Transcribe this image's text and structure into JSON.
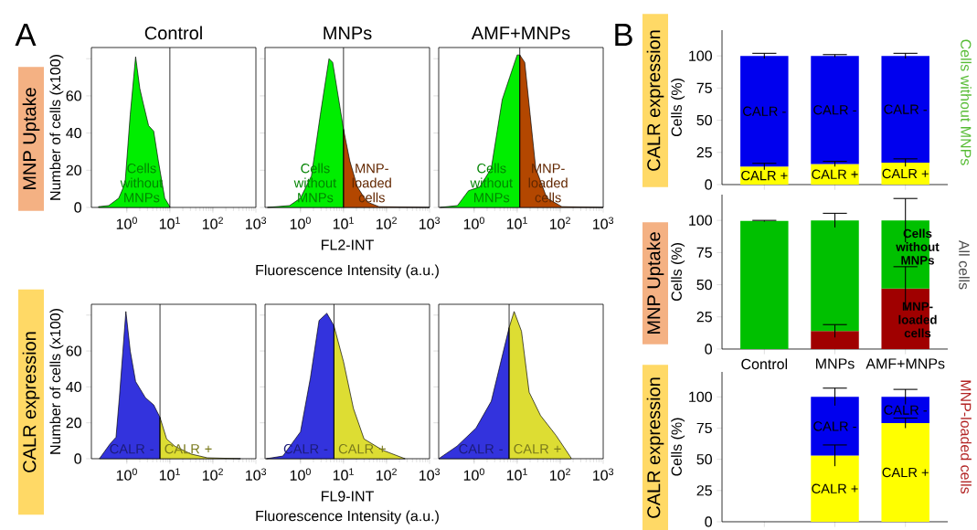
{
  "chart_data": [
    {
      "type": "area",
      "title": "Control",
      "ylabel": "Number of cells (x100)",
      "log": "x",
      "xlim": [
        0.15,
        1000
      ],
      "ylim": [
        0,
        86
      ],
      "xticks": [
        {
          "value": 1,
          "label": "10$^{0}$"
        },
        {
          "value": 10,
          "label": "10$^{1}$"
        },
        {
          "value": 100,
          "label": "10$^{2}$"
        },
        {
          "value": 1000,
          "label": "10$^{3}$"
        }
      ],
      "yticks": [
        0,
        20,
        40,
        60,
        {
          "value": 80,
          "label": null
        }
      ],
      "series": [
        {
          "name": "Cells without MNPs",
          "color": "#00ee00",
          "x": [
            0.22,
            0.38,
            0.65,
            0.91,
            1.2,
            1.6,
            2.0,
            2.4,
            3.2,
            4.2,
            5.4,
            7.6,
            10
          ],
          "values": [
            0.4,
            1,
            5,
            13,
            50,
            81,
            64,
            56,
            44,
            41,
            25,
            5,
            0.4
          ]
        }
      ],
      "ref_lines": [
        {
          "axis": "x",
          "value": 10
        }
      ],
      "annotations": [
        "A",
        "MNP Uptake"
      ]
    },
    {
      "type": "area",
      "title": "MNPs",
      "xlabel": "FL2-INT",
      "log": "x",
      "xlim": [
        0.15,
        1000
      ],
      "ylim": [
        0,
        86
      ],
      "tick_labels": "x",
      "xticks": [
        {
          "value": 1,
          "label": "10$^{0}$"
        },
        {
          "value": 10,
          "label": "10$^{1}$"
        },
        {
          "value": 100,
          "label": "10$^{2}$"
        },
        {
          "value": 1000,
          "label": "10$^{3}$"
        }
      ],
      "yticks": [
        0,
        20,
        40,
        60,
        80
      ],
      "series": [
        {
          "name": "Cells without MNPs",
          "color": "#00ee00",
          "x": [
            0.17,
            0.56,
            1.0,
            1.8,
            2.9,
            4.6,
            5.6,
            7.5,
            10
          ],
          "values": [
            0,
            1,
            5,
            17,
            50,
            80,
            78,
            60,
            42
          ]
        },
        {
          "name": "MNP-loaded cells",
          "color": "#b34700",
          "x": [
            10,
            14,
            21,
            35,
            67,
            1000
          ],
          "values": [
            42,
            25,
            11,
            3,
            0.4,
            0
          ]
        }
      ],
      "ref_lines": [
        {
          "axis": "x",
          "value": 10
        }
      ],
      "annotations": [
        "Fluorescence Intensity (a.u.)"
      ]
    },
    {
      "type": "area",
      "title": "AMF+MNPs",
      "log": "x",
      "xlim": [
        0.15,
        1000
      ],
      "ylim": [
        0,
        86
      ],
      "tick_labels": "x",
      "xticks": [
        {
          "value": 1,
          "label": "10$^{0}$"
        },
        {
          "value": 10,
          "label": "10$^{1}$"
        },
        {
          "value": 100,
          "label": "10$^{2}$"
        },
        {
          "value": 1000,
          "label": "10$^{3}$"
        }
      ],
      "yticks": [
        0,
        20,
        40,
        60,
        80
      ],
      "series": [
        {
          "name": "Cells without MNPs",
          "color": "#00ee00",
          "x": [
            0.16,
            0.41,
            0.74,
            1.35,
            2.5,
            4.5,
            6.7,
            10,
            11.5
          ],
          "values": [
            0,
            1,
            9,
            11,
            21,
            58,
            70,
            82,
            82
          ]
        },
        {
          "name": "MNP-loaded cells",
          "color": "#b34700",
          "x": [
            11.5,
            15,
            20,
            27,
            49,
            110,
            1000
          ],
          "values": [
            82,
            78,
            50,
            21,
            5,
            0.4,
            0
          ]
        }
      ],
      "ref_lines": [
        {
          "axis": "x",
          "value": 11.5
        }
      ]
    },
    {
      "type": "area",
      "ylabel": "Number of cells (x100)",
      "log": "x",
      "xlim": [
        0.15,
        1000
      ],
      "ylim": [
        0,
        86
      ],
      "xticks": [
        {
          "value": 1,
          "label": "10$^{0}$"
        },
        {
          "value": 10,
          "label": "10$^{1}$"
        },
        {
          "value": 100,
          "label": "10$^{2}$"
        },
        {
          "value": 1000,
          "label": "10$^{3}$"
        }
      ],
      "yticks": [
        0,
        20,
        40,
        60,
        {
          "value": 80,
          "label": null
        }
      ],
      "series": [
        {
          "name": "CALR -",
          "color": "#3333dd",
          "x": [
            0.23,
            0.4,
            0.56,
            0.67,
            0.95,
            1.2,
            1.6,
            2.7,
            4.2,
            5.9
          ],
          "values": [
            0,
            8,
            12,
            34,
            82,
            60,
            43,
            34,
            30,
            23
          ]
        },
        {
          "name": "CALR +",
          "color": "#dddd33",
          "x": [
            5.9,
            8.4,
            13,
            31,
            74,
            440
          ],
          "values": [
            23,
            11,
            7,
            2.6,
            0.5,
            0
          ]
        }
      ],
      "ref_lines": [
        {
          "axis": "x",
          "value": 5.9
        }
      ],
      "annotations": [
        "CALR expression"
      ]
    },
    {
      "type": "area",
      "xlabel": "FL9-INT",
      "log": "x",
      "xlim": [
        0.15,
        1000
      ],
      "ylim": [
        0,
        86
      ],
      "tick_labels": "x",
      "xticks": [
        {
          "value": 1,
          "label": "10$^{0}$"
        },
        {
          "value": 10,
          "label": "10$^{1}$"
        },
        {
          "value": 100,
          "label": "10$^{2}$"
        },
        {
          "value": 1000,
          "label": "10$^{3}$"
        }
      ],
      "yticks": [
        0,
        20,
        40,
        60,
        80
      ],
      "series": [
        {
          "name": "CALR -",
          "color": "#3333dd",
          "x": [
            0.16,
            0.39,
            1.0,
            1.7,
            2.7,
            4.1,
            6.0
          ],
          "values": [
            0,
            1.5,
            15,
            45,
            77,
            81,
            74
          ]
        },
        {
          "name": "CALR +",
          "color": "#dddd33",
          "x": [
            6.0,
            10,
            17,
            30,
            82,
            270
          ],
          "values": [
            74,
            54,
            28,
            11,
            4.7,
            0
          ]
        }
      ],
      "ref_lines": [
        {
          "axis": "x",
          "value": 6
        }
      ],
      "annotations": [
        "Fluorescence Intensity (a.u.)"
      ]
    },
    {
      "type": "area",
      "log": "x",
      "xlim": [
        0.15,
        1000
      ],
      "ylim": [
        0,
        86
      ],
      "tick_labels": "x",
      "xticks": [
        {
          "value": 1,
          "label": "10$^{0}$"
        },
        {
          "value": 10,
          "label": "10$^{1}$"
        },
        {
          "value": 100,
          "label": "10$^{2}$"
        },
        {
          "value": 1000,
          "label": "10$^{3}$"
        }
      ],
      "yticks": [
        0,
        20,
        40,
        60,
        80
      ],
      "series": [
        {
          "name": "CALR -",
          "color": "#3333dd",
          "x": [
            0.15,
            0.4,
            1.1,
            2.5,
            6.5
          ],
          "values": [
            0,
            7,
            17,
            32,
            73
          ]
        },
        {
          "name": "CALR +",
          "color": "#dddd33",
          "x": [
            6.5,
            8.5,
            12.6,
            19,
            35,
            80,
            180
          ],
          "values": [
            73,
            82,
            71,
            37,
            24,
            13,
            0.4
          ]
        }
      ],
      "ref_lines": [
        {
          "axis": "x",
          "value": 6.5
        }
      ]
    },
    {
      "type": "bar",
      "stacked": true,
      "ylabel": "Cells (%)",
      "categories": [
        null,
        null,
        null
      ],
      "ylim": [
        0,
        120
      ],
      "yticks": [
        0,
        25,
        50,
        75,
        100
      ],
      "series": [
        {
          "name": "CALR +",
          "color": "#ffff00",
          "values": [
            14,
            16,
            17
          ],
          "errors": [
            2.5,
            2,
            3
          ]
        },
        {
          "name": "CALR -",
          "color": "#0000ee",
          "values": [
            86,
            84,
            83
          ],
          "errors": [
            2,
            1,
            2
          ]
        }
      ],
      "annotations": [
        "B",
        "CALR expression",
        "Cells without MNPs"
      ]
    },
    {
      "type": "bar",
      "stacked": true,
      "ylabel": "Cells (%)",
      "categories": [
        "Control",
        "MNPs",
        "AMF+MNPs"
      ],
      "ylim": [
        0,
        120
      ],
      "yticks": [
        0,
        25,
        50,
        75,
        100
      ],
      "series": [
        {
          "color": "#a00000",
          "values": [
            null,
            14,
            47
          ],
          "errors": [
            null,
            5,
            17
          ]
        },
        {
          "color": "#00c000",
          "values": [
            99.5,
            86,
            53
          ],
          "errors": [
            0.5,
            5.5,
            17
          ]
        }
      ],
      "annotations": [
        "Cells without MNPs",
        "MNP-loaded cells",
        "MNP Uptake",
        "All cells"
      ]
    },
    {
      "type": "bar",
      "stacked": true,
      "ylabel": "Cells (%)",
      "categories": [
        null,
        null,
        null
      ],
      "ylim": [
        0,
        120
      ],
      "yticks": [
        0,
        25,
        50,
        75,
        100
      ],
      "series": [
        {
          "name": "CALR +",
          "color": "#ffff00",
          "values": [
            null,
            53,
            79
          ],
          "errors": [
            null,
            8.5,
            4
          ]
        },
        {
          "name": "CALR -",
          "color": "#0000ee",
          "values": [
            null,
            47,
            21
          ],
          "errors": [
            null,
            7,
            6
          ]
        }
      ],
      "annotations": [
        "CALR expression",
        "MNP-loaded cells"
      ]
    }
  ]
}
